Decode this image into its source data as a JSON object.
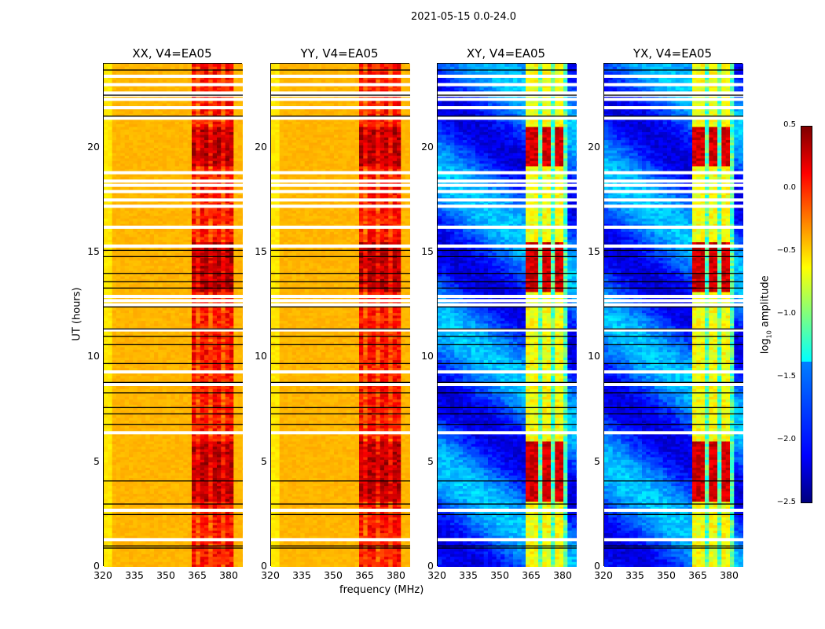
{
  "chart_data": {
    "type": "heatmap",
    "title": "2021-05-15 0.0-24.0",
    "xlabel": "frequency (MHz)",
    "ylabel": "UT (hours)",
    "xlim": [
      320,
      386.4
    ],
    "ylim": [
      0,
      24
    ],
    "xticks": [
      "320",
      "335",
      "350",
      "365",
      "380"
    ],
    "yticks": [
      "0",
      "5",
      "10",
      "15",
      "20"
    ],
    "panels": [
      {
        "title": "XX, V4=EA05",
        "kind": "parallel"
      },
      {
        "title": "YY, V4=EA05",
        "kind": "parallel"
      },
      {
        "title": "XY, V4=EA05",
        "kind": "cross"
      },
      {
        "title": "YX, V4=EA05",
        "kind": "cross"
      }
    ],
    "rfi_band_mhz": [
      362,
      382
    ],
    "flagged_white_hours": [
      1.3,
      2.7,
      6.4,
      8.7,
      9.3,
      11.3,
      12.5,
      12.7,
      12.9,
      15.3,
      16.2,
      17.2,
      17.5,
      17.9,
      18.2,
      18.4,
      18.8,
      21.4,
      21.9,
      22.3,
      22.5,
      22.6,
      23.0,
      23.4
    ],
    "flagged_black_hours": [
      0.9,
      1.0,
      2.5,
      3.0,
      4.1,
      6.8,
      7.3,
      7.6,
      8.3,
      8.8,
      9.7,
      10.6,
      11.0,
      11.35,
      12.4,
      13.3,
      13.6,
      14.0,
      14.8,
      15.1,
      21.5,
      22.5,
      23.7
    ],
    "colorbar": {
      "label": "log10 amplitude",
      "clim": [
        -2.5,
        0.5
      ],
      "ticks": [
        "0.5",
        "0.0",
        "−0.5",
        "−1.0",
        "−1.5",
        "−2.0",
        "−2.5"
      ],
      "colormap": "jet"
    }
  }
}
